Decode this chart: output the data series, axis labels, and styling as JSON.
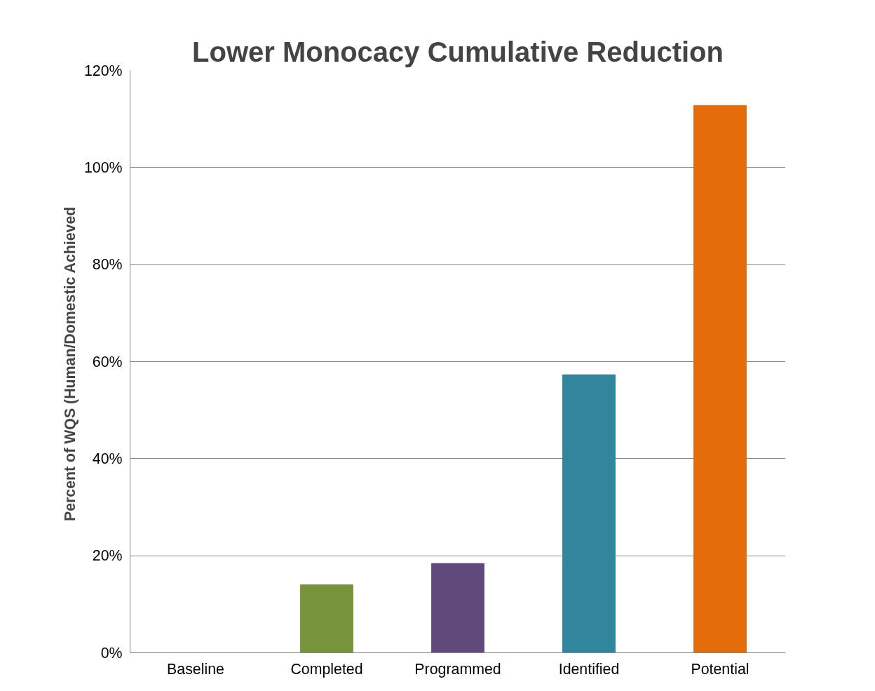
{
  "chart_data": {
    "type": "bar",
    "title": "Lower Monocacy Cumulative Reduction",
    "ylabel": "Percent of  WQS (Human/Domestic Achieved",
    "categories": [
      "Baseline",
      "Completed",
      "Programmed",
      "Identified",
      "Potential"
    ],
    "values": [
      0,
      14.0,
      18.4,
      57.3,
      112.8
    ],
    "colors": [
      "#4f81bd",
      "#77933c",
      "#604a7b",
      "#31859c",
      "#e46c0a"
    ],
    "ylim": [
      0,
      120
    ],
    "yticks": [
      {
        "value": 0,
        "label": "0%"
      },
      {
        "value": 20,
        "label": "20%"
      },
      {
        "value": 40,
        "label": "40%"
      },
      {
        "value": 60,
        "label": "60%"
      },
      {
        "value": 80,
        "label": "80%"
      },
      {
        "value": 100,
        "label": "100%"
      },
      {
        "value": 120,
        "label": "120%"
      }
    ],
    "grid": "y"
  }
}
